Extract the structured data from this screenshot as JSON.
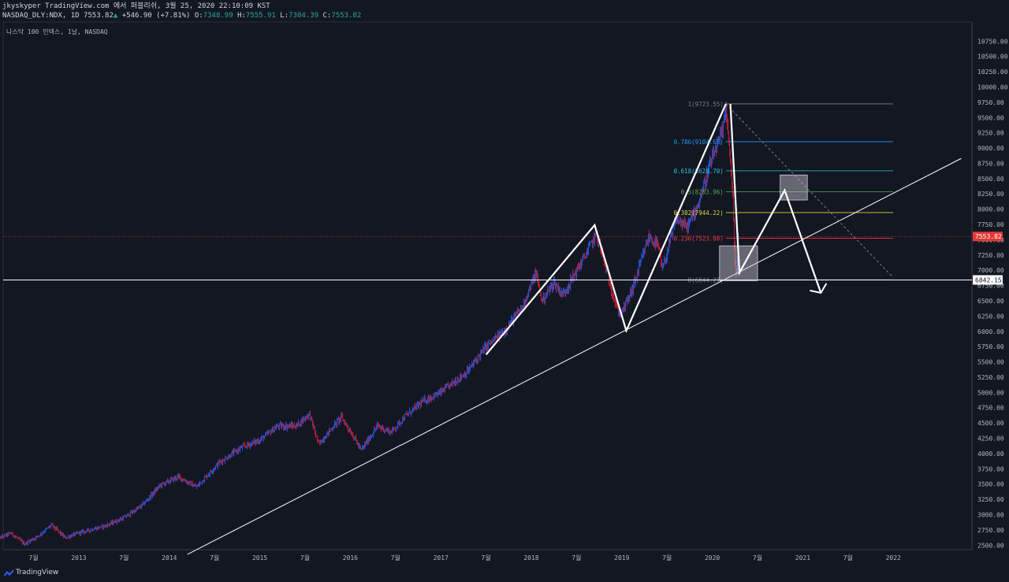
{
  "header": {
    "author_line": "jkyskyper TradingView.com 에서 퍼블리쉬, 3월 25, 2020 22:10:09 KST",
    "symbol": "NASDAQ_DLY:NDX, 1D",
    "last": "7553.82",
    "change": "+546.90 (+7.81%)",
    "o_label": "O:",
    "o_value": "7348.99",
    "h_label": "H:",
    "h_value": "7555.91",
    "l_label": "L:",
    "l_value": "7304.39",
    "c_label": "C:",
    "c_value": "7553.82"
  },
  "chart_title": "나스닥 100 인덱스, 1날, NASDAQ",
  "footer": {
    "brand": "TradingView"
  },
  "colors": {
    "background": "#131722",
    "up": "#2962ff",
    "down": "#e0203a",
    "annotation": "#ffffff",
    "price_line": "#e53935"
  },
  "chart_data": {
    "type": "candlestick",
    "ylim": [
      2350,
      10950
    ],
    "y_ticks": [
      2500,
      2750,
      3000,
      3250,
      3500,
      3750,
      4000,
      4250,
      4500,
      4750,
      5000,
      5250,
      5500,
      5750,
      6000,
      6250,
      6500,
      6750,
      7000,
      7250,
      7500,
      7750,
      8000,
      8250,
      8500,
      8750,
      9000,
      9250,
      9500,
      9750,
      10000,
      10250,
      10500,
      10750
    ],
    "y_tick_labels": [
      "2500.00",
      "2750.00",
      "3000.00",
      "3250.00",
      "3500.00",
      "3750.00",
      "4000.00",
      "4250.00",
      "4500.00",
      "4750.00",
      "5000.00",
      "5250.00",
      "5500.00",
      "5750.00",
      "6000.00",
      "6250.00",
      "6500.00",
      "6750.00",
      "7000.00",
      "7250.00",
      "7500.00",
      "7750.00",
      "8000.00",
      "8250.00",
      "8500.00",
      "8750.00",
      "9000.00",
      "9250.00",
      "9500.00",
      "9750.00",
      "10000.00",
      "10250.00",
      "10500.00",
      "10750.00"
    ],
    "x_ticks": [
      {
        "t": 2012.5,
        "label": "7월"
      },
      {
        "t": 2013.0,
        "label": "2013"
      },
      {
        "t": 2013.5,
        "label": "7월"
      },
      {
        "t": 2014.0,
        "label": "2014"
      },
      {
        "t": 2014.5,
        "label": "7월"
      },
      {
        "t": 2015.0,
        "label": "2015"
      },
      {
        "t": 2015.5,
        "label": "7월"
      },
      {
        "t": 2016.0,
        "label": "2016"
      },
      {
        "t": 2016.5,
        "label": "7월"
      },
      {
        "t": 2017.0,
        "label": "2017"
      },
      {
        "t": 2017.5,
        "label": "7월"
      },
      {
        "t": 2018.0,
        "label": "2018"
      },
      {
        "t": 2018.5,
        "label": "7월"
      },
      {
        "t": 2019.0,
        "label": "2019"
      },
      {
        "t": 2019.5,
        "label": "7월"
      },
      {
        "t": 2020.0,
        "label": "2020"
      },
      {
        "t": 2020.5,
        "label": "7월"
      },
      {
        "t": 2021.0,
        "label": "2021"
      },
      {
        "t": 2021.5,
        "label": "7월"
      },
      {
        "t": 2022.0,
        "label": "2022"
      }
    ],
    "xlim": [
      2012.1,
      2022.85
    ],
    "price_path": [
      [
        2012.1,
        2600
      ],
      [
        2012.25,
        2700
      ],
      [
        2012.4,
        2520
      ],
      [
        2012.55,
        2650
      ],
      [
        2012.7,
        2830
      ],
      [
        2012.85,
        2620
      ],
      [
        2013.0,
        2700
      ],
      [
        2013.3,
        2820
      ],
      [
        2013.5,
        2950
      ],
      [
        2013.7,
        3150
      ],
      [
        2013.9,
        3480
      ],
      [
        2014.1,
        3620
      ],
      [
        2014.3,
        3450
      ],
      [
        2014.55,
        3850
      ],
      [
        2014.8,
        4100
      ],
      [
        2015.0,
        4220
      ],
      [
        2015.2,
        4450
      ],
      [
        2015.4,
        4450
      ],
      [
        2015.55,
        4650
      ],
      [
        2015.65,
        4150
      ],
      [
        2015.9,
        4600
      ],
      [
        2016.05,
        4250
      ],
      [
        2016.12,
        4050
      ],
      [
        2016.3,
        4450
      ],
      [
        2016.45,
        4350
      ],
      [
        2016.6,
        4600
      ],
      [
        2016.8,
        4850
      ],
      [
        2017.0,
        5000
      ],
      [
        2017.3,
        5350
      ],
      [
        2017.5,
        5750
      ],
      [
        2017.7,
        6000
      ],
      [
        2017.9,
        6400
      ],
      [
        2018.05,
        6950
      ],
      [
        2018.12,
        6500
      ],
      [
        2018.25,
        6800
      ],
      [
        2018.35,
        6600
      ],
      [
        2018.6,
        7250
      ],
      [
        2018.72,
        7600
      ],
      [
        2018.85,
        6900
      ],
      [
        2018.95,
        6350
      ],
      [
        2019.0,
        6300
      ],
      [
        2019.12,
        6700
      ],
      [
        2019.3,
        7550
      ],
      [
        2019.4,
        7400
      ],
      [
        2019.45,
        7000
      ],
      [
        2019.6,
        7850
      ],
      [
        2019.72,
        7700
      ],
      [
        2019.85,
        8100
      ],
      [
        2019.97,
        8700
      ],
      [
        2020.12,
        9300
      ],
      [
        2020.15,
        9718
      ],
      [
        2020.2,
        8800
      ],
      [
        2020.23,
        8100
      ],
      [
        2020.25,
        7200
      ],
      [
        2020.265,
        6850
      ],
      [
        2020.275,
        7100
      ],
      [
        2020.29,
        7553.82
      ]
    ],
    "last_price": 7553.82,
    "last_price_label": "7553.82",
    "hline_price": 6842.15,
    "hline_label": "6842.15",
    "fibonacci": [
      {
        "level": "1",
        "price": 9723.55,
        "label": "1(9723.55)",
        "color": "#787b86"
      },
      {
        "level": "0.786",
        "price": 9104.65,
        "label": "0.786(9104.65)",
        "color": "#2196f3"
      },
      {
        "level": "0.618",
        "price": 8628.7,
        "label": "0.618(8628.70)",
        "color": "#26c6da"
      },
      {
        "level": "0.5",
        "price": 8283.96,
        "label": "0.5(8283.96)",
        "color": "#4caf50"
      },
      {
        "level": "0.382",
        "price": 7944.22,
        "label": "0.382(7944.22)",
        "color": "#cddc39"
      },
      {
        "level": "0.236",
        "price": 7523.88,
        "label": "0.236(7523.88)",
        "color": "#f23645"
      },
      {
        "level": "0",
        "price": 6844.27,
        "label": "0(6844.27)",
        "color": "#787b86"
      }
    ],
    "zigzag": [
      [
        2017.5,
        5620
      ],
      [
        2018.7,
        7740
      ],
      [
        2019.05,
        6010
      ],
      [
        2020.15,
        9723
      ]
    ],
    "projection": [
      [
        2020.2,
        9723
      ],
      [
        2020.3,
        6960
      ],
      [
        2020.8,
        8310
      ],
      [
        2021.2,
        6630
      ]
    ],
    "trendline": [
      [
        2014.2,
        2350
      ],
      [
        2022.75,
        8830
      ]
    ],
    "dashed_line": [
      [
        2020.15,
        9723
      ],
      [
        2022.0,
        6880
      ]
    ],
    "boxes": [
      {
        "t0": 2020.08,
        "t1": 2020.5,
        "p0": 6830,
        "p1": 7400
      },
      {
        "t0": 2020.75,
        "t1": 2021.05,
        "p0": 8150,
        "p1": 8560
      }
    ],
    "grid": false
  }
}
